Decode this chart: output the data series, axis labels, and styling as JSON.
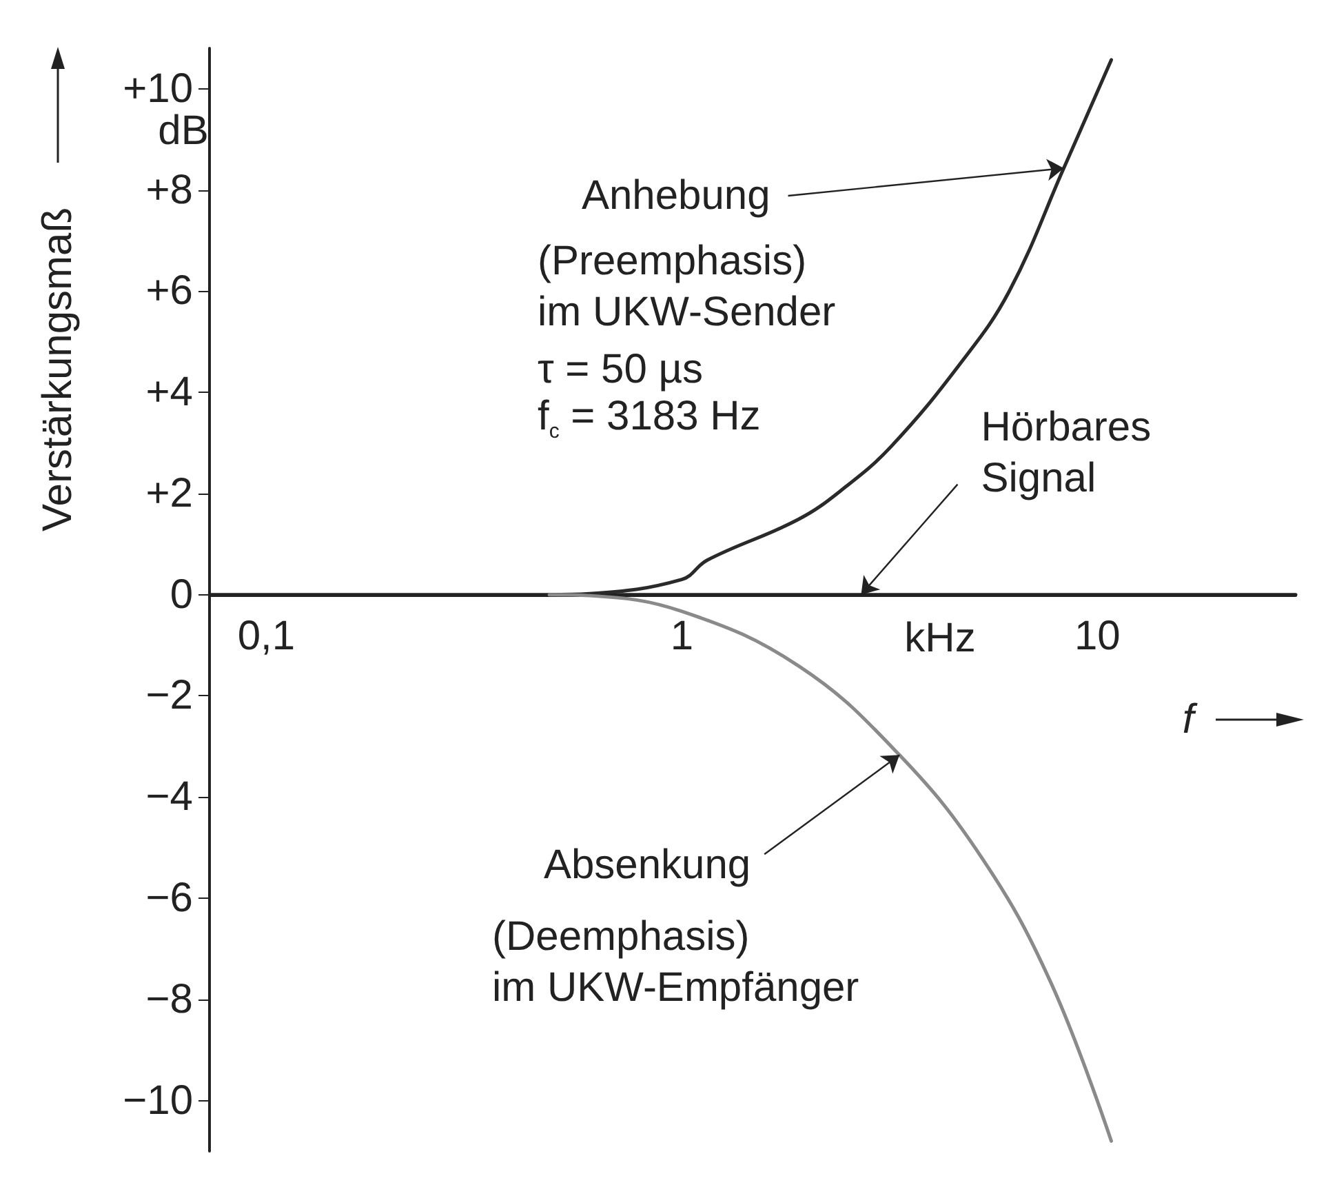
{
  "chart_data": {
    "type": "line",
    "xlabel": "f",
    "ylabel": "Verstärkungsmaß",
    "log": "x",
    "xlim": [
      0.073,
      30
    ],
    "ylim": [
      -11,
      10.8
    ],
    "xticks": [
      {
        "value": 0.1,
        "label": "0,1"
      },
      1,
      10
    ],
    "yticks": [
      {
        "value": -10,
        "label": "−10"
      },
      {
        "value": -8,
        "label": "−8"
      },
      {
        "value": -6,
        "label": "−6"
      },
      {
        "value": -4,
        "label": "−4"
      },
      {
        "value": -2,
        "label": "−2"
      },
      0,
      {
        "value": 2,
        "label": "+2"
      },
      {
        "value": 4,
        "label": "+4"
      },
      {
        "value": 6,
        "label": "+6"
      },
      {
        "value": 8,
        "label": "+8"
      },
      {
        "value": 10,
        "label": "+10"
      }
    ],
    "grid": false,
    "marker": "none",
    "line_style": "solid",
    "series": [
      {
        "color": "#222222",
        "x": [
          0.073,
          30
        ],
        "values": [
          0,
          0
        ]
      },
      {
        "color": "#2a2a2a",
        "x": [
          0.48,
          0.6,
          1,
          1.15,
          1.91,
          2.46,
          3.19,
          4.66,
          6.13,
          8.3,
          10.8
        ],
        "values": [
          0,
          0.02,
          0.3,
          0.68,
          1.49,
          2.11,
          2.93,
          4.55,
          5.99,
          8.43,
          10.57
        ]
      },
      {
        "color": "#8a8a8a",
        "x": [
          0.48,
          0.6,
          1,
          1.91,
          3.34,
          5.27,
          7.7,
          10.8
        ],
        "values": [
          0,
          -0.02,
          -0.33,
          -1.41,
          -3.17,
          -5.2,
          -7.64,
          -10.8
        ]
      }
    ],
    "annotations": [
      {
        "text": "Anhebung",
        "x": 8.3,
        "y": 8.43
      },
      "(Preemphasis)\nim UKW-Sender",
      "τ = 50 µs",
      "f$_{c}$ = 3183 Hz",
      {
        "text": "Hörbares\nSignal",
        "x": 2.7,
        "y": 0
      },
      {
        "text": "Absenkung",
        "x": 3.34,
        "y": -3.17
      },
      "(Deemphasis)\nim UKW-Empfänger",
      "dB",
      "kHz"
    ]
  }
}
